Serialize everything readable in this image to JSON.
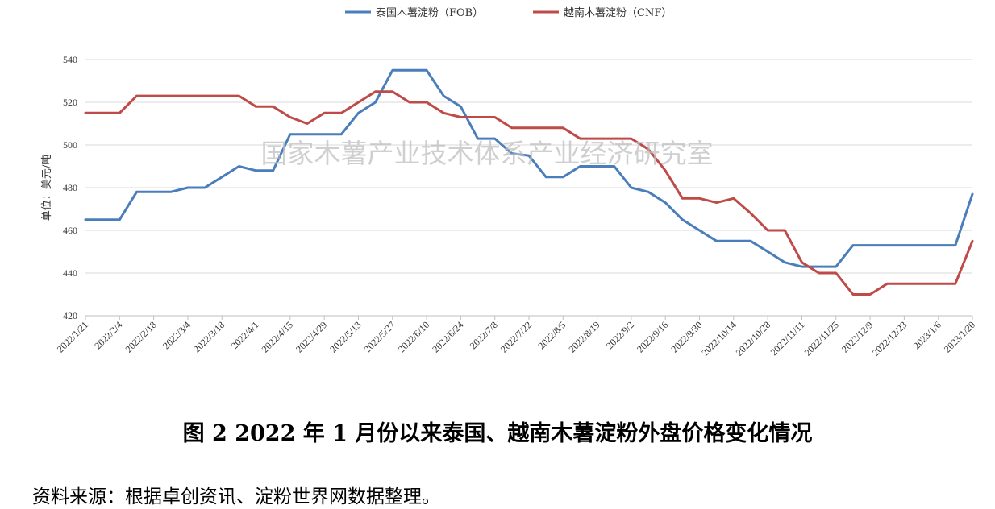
{
  "watermark": "国家木薯产业技术体系产业经济研究室",
  "caption": "图 2 2022 年 1 月份以来泰国、越南木薯淀粉外盘价格变化情况",
  "source": "资料来源：根据卓创资讯、淀粉世界网数据整理。",
  "chart_data": {
    "type": "line",
    "title": "",
    "xlabel": "",
    "ylabel": "单位：美元/吨",
    "ylim": [
      420,
      540
    ],
    "yticks": [
      420,
      440,
      460,
      480,
      500,
      520,
      540
    ],
    "grid": "horizontal",
    "legend_position": "top-center",
    "x_tick_labels": [
      "2022/1/21",
      "2022/2/4",
      "2022/2/18",
      "2022/3/4",
      "2022/3/18",
      "2022/4/1",
      "2022/4/15",
      "2022/4/29",
      "2022/5/13",
      "2022/5/27",
      "2022/6/10",
      "2022/6/24",
      "2022/7/8",
      "2022/7/22",
      "2022/8/5",
      "2022/8/19",
      "2022/9/2",
      "2022/9/16",
      "2022/9/30",
      "2022/10/14",
      "2022/10/28",
      "2022/11/11",
      "2022/11/25",
      "2022/12/9",
      "2022/12/23",
      "2023/1/6",
      "2023/1/20"
    ],
    "x": [
      "2022/1/21",
      "2022/1/28",
      "2022/2/4",
      "2022/2/11",
      "2022/2/18",
      "2022/2/25",
      "2022/3/4",
      "2022/3/11",
      "2022/3/18",
      "2022/3/25",
      "2022/4/1",
      "2022/4/8",
      "2022/4/15",
      "2022/4/22",
      "2022/4/29",
      "2022/5/6",
      "2022/5/13",
      "2022/5/20",
      "2022/5/27",
      "2022/6/3",
      "2022/6/10",
      "2022/6/17",
      "2022/6/24",
      "2022/7/1",
      "2022/7/8",
      "2022/7/15",
      "2022/7/22",
      "2022/7/29",
      "2022/8/5",
      "2022/8/12",
      "2022/8/19",
      "2022/8/26",
      "2022/9/2",
      "2022/9/9",
      "2022/9/16",
      "2022/9/23",
      "2022/9/30",
      "2022/10/7",
      "2022/10/14",
      "2022/10/21",
      "2022/10/28",
      "2022/11/4",
      "2022/11/11",
      "2022/11/18",
      "2022/11/25",
      "2022/12/2",
      "2022/12/9",
      "2022/12/16",
      "2022/12/23",
      "2022/12/30",
      "2023/1/6",
      "2023/1/13",
      "2023/1/20"
    ],
    "series": [
      {
        "name": "泰国木薯淀粉（FOB）",
        "color": "#4a7ebb",
        "values": [
          465,
          465,
          465,
          478,
          478,
          478,
          480,
          480,
          485,
          490,
          488,
          488,
          505,
          505,
          505,
          505,
          515,
          520,
          535,
          535,
          535,
          523,
          518,
          503,
          503,
          496,
          495,
          485,
          485,
          490,
          490,
          490,
          480,
          478,
          473,
          465,
          460,
          455,
          455,
          455,
          450,
          445,
          443,
          443,
          443,
          453,
          453,
          453,
          453,
          453,
          453,
          453,
          477
        ]
      },
      {
        "name": "越南木薯淀粉（CNF）",
        "color": "#be4b48",
        "values": [
          515,
          515,
          515,
          523,
          523,
          523,
          523,
          523,
          523,
          523,
          518,
          518,
          513,
          510,
          515,
          515,
          520,
          525,
          525,
          520,
          520,
          515,
          513,
          513,
          513,
          508,
          508,
          508,
          508,
          503,
          503,
          503,
          503,
          498,
          488,
          475,
          475,
          473,
          475,
          468,
          460,
          460,
          445,
          440,
          440,
          430,
          430,
          435,
          435,
          435,
          435,
          435,
          455
        ]
      }
    ]
  }
}
